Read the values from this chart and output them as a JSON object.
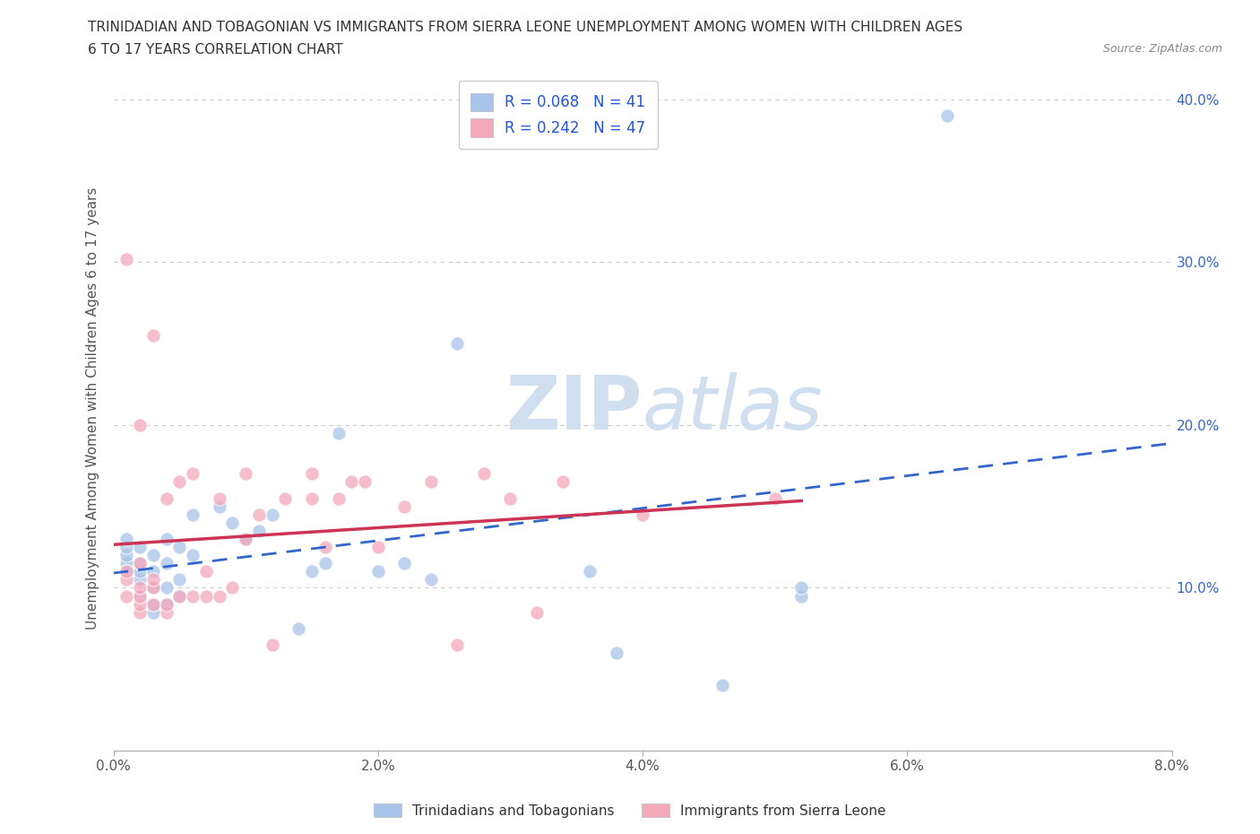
{
  "title_line1": "TRINIDADIAN AND TOBAGONIAN VS IMMIGRANTS FROM SIERRA LEONE UNEMPLOYMENT AMONG WOMEN WITH CHILDREN AGES",
  "title_line2": "6 TO 17 YEARS CORRELATION CHART",
  "source": "Source: ZipAtlas.com",
  "ylabel": "Unemployment Among Women with Children Ages 6 to 17 years",
  "xlim": [
    0.0,
    0.08
  ],
  "ylim": [
    0.0,
    0.42
  ],
  "xtick_vals": [
    0.0,
    0.02,
    0.04,
    0.06,
    0.08
  ],
  "xtick_labels": [
    "0.0%",
    "2.0%",
    "4.0%",
    "6.0%",
    "8.0%"
  ],
  "ytick_vals": [
    0.0,
    0.1,
    0.2,
    0.3,
    0.4
  ],
  "ytick_right_labels": [
    "",
    "10.0%",
    "20.0%",
    "30.0%",
    "40.0%"
  ],
  "legend_label1": "Trinidadians and Tobagonians",
  "legend_label2": "Immigrants from Sierra Leone",
  "blue_color": "#a8c4e8",
  "pink_color": "#f4a8bc",
  "blue_line_color": "#3366cc",
  "pink_line_color": "#cc3355",
  "watermark_color": "#d0dff0",
  "background_color": "#ffffff",
  "grid_color": "#cccccc",
  "blue_points_x": [
    0.001,
    0.001,
    0.001,
    0.001,
    0.001,
    0.002,
    0.002,
    0.002,
    0.002,
    0.002,
    0.003,
    0.003,
    0.003,
    0.003,
    0.003,
    0.004,
    0.004,
    0.004,
    0.004,
    0.005,
    0.005,
    0.005,
    0.006,
    0.006,
    0.008,
    0.009,
    0.01,
    0.011,
    0.012,
    0.014,
    0.015,
    0.016,
    0.017,
    0.02,
    0.022,
    0.024,
    0.026,
    0.036,
    0.038,
    0.046,
    0.052,
    0.052,
    0.063
  ],
  "blue_points_y": [
    0.115,
    0.12,
    0.125,
    0.13,
    0.11,
    0.095,
    0.105,
    0.11,
    0.125,
    0.115,
    0.085,
    0.09,
    0.1,
    0.11,
    0.12,
    0.09,
    0.1,
    0.115,
    0.13,
    0.095,
    0.105,
    0.125,
    0.12,
    0.145,
    0.15,
    0.14,
    0.13,
    0.135,
    0.145,
    0.075,
    0.11,
    0.115,
    0.195,
    0.11,
    0.115,
    0.105,
    0.25,
    0.11,
    0.06,
    0.04,
    0.095,
    0.1,
    0.39
  ],
  "pink_points_x": [
    0.001,
    0.001,
    0.001,
    0.001,
    0.002,
    0.002,
    0.002,
    0.002,
    0.002,
    0.002,
    0.003,
    0.003,
    0.003,
    0.003,
    0.004,
    0.004,
    0.004,
    0.005,
    0.005,
    0.006,
    0.006,
    0.007,
    0.007,
    0.008,
    0.008,
    0.009,
    0.01,
    0.01,
    0.011,
    0.012,
    0.013,
    0.015,
    0.015,
    0.016,
    0.017,
    0.018,
    0.019,
    0.02,
    0.022,
    0.024,
    0.026,
    0.028,
    0.03,
    0.032,
    0.034,
    0.04,
    0.05
  ],
  "pink_points_y": [
    0.095,
    0.105,
    0.11,
    0.302,
    0.085,
    0.09,
    0.095,
    0.1,
    0.115,
    0.2,
    0.09,
    0.1,
    0.105,
    0.255,
    0.085,
    0.09,
    0.155,
    0.095,
    0.165,
    0.095,
    0.17,
    0.095,
    0.11,
    0.095,
    0.155,
    0.1,
    0.13,
    0.17,
    0.145,
    0.065,
    0.155,
    0.155,
    0.17,
    0.125,
    0.155,
    0.165,
    0.165,
    0.125,
    0.15,
    0.165,
    0.065,
    0.17,
    0.155,
    0.085,
    0.165,
    0.145,
    0.155
  ]
}
